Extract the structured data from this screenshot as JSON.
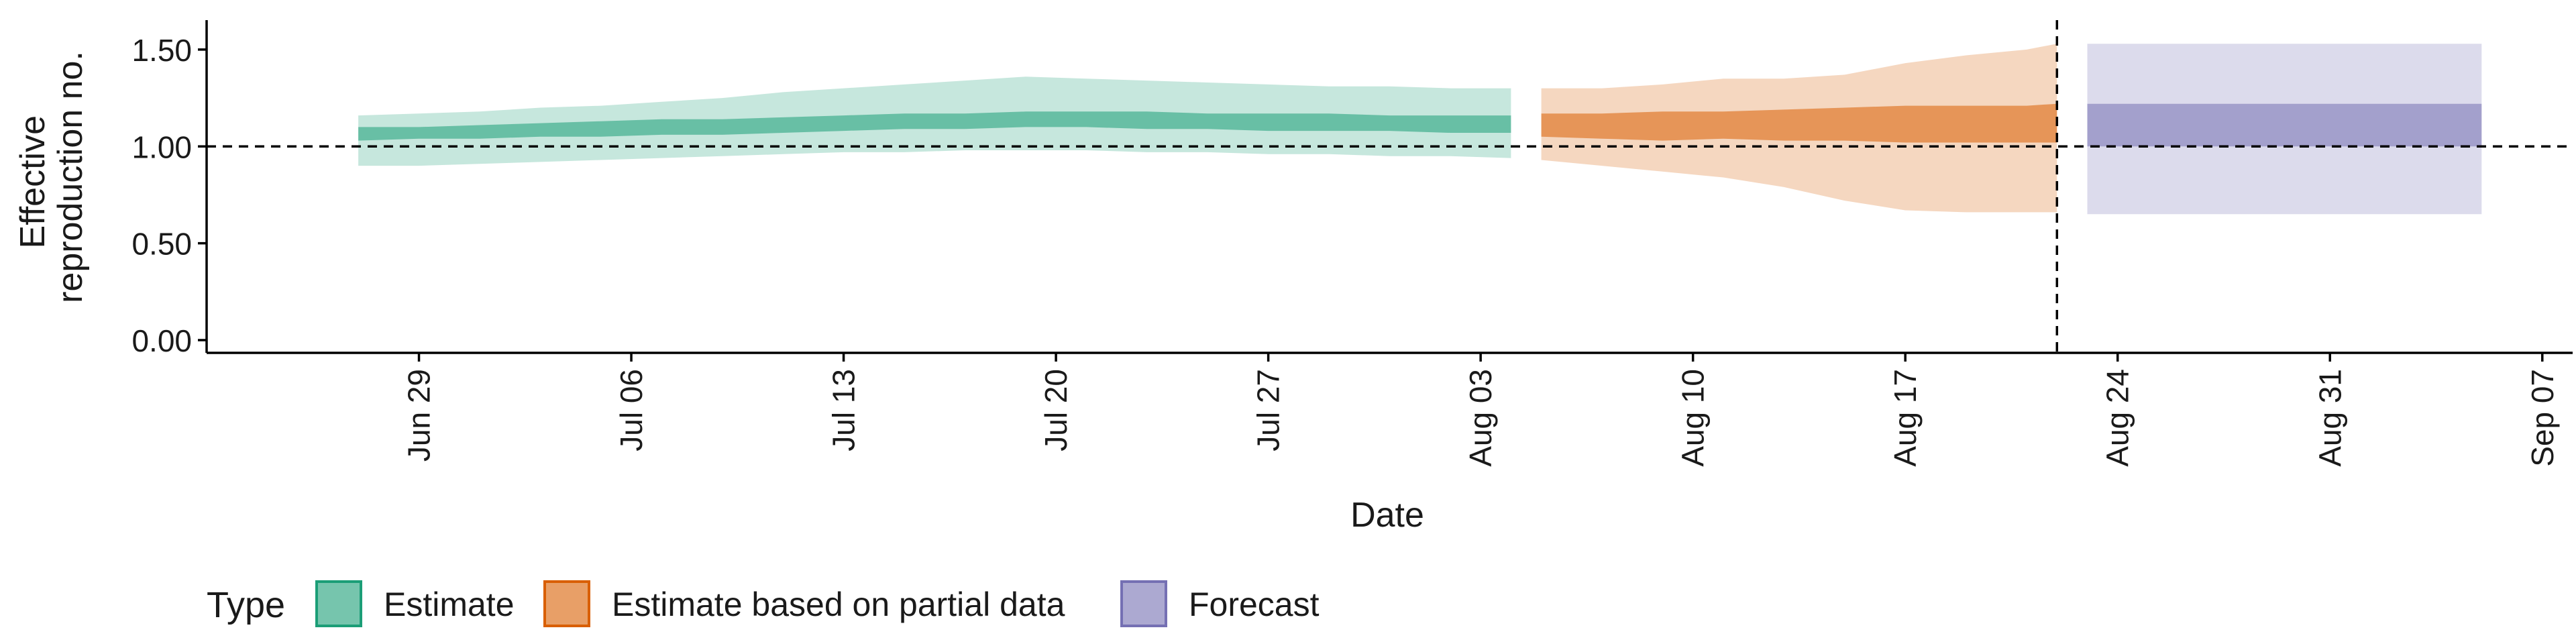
{
  "chart_data": {
    "type": "area",
    "xlabel": "Date",
    "ylabel_lines": [
      "Effective",
      "reproduction no."
    ],
    "ylim": [
      0,
      1.6
    ],
    "y_ticks": [
      0.0,
      0.5,
      1.0,
      1.5
    ],
    "y_tick_labels": [
      "0.00",
      "0.50",
      "1.00",
      "1.50"
    ],
    "x_ticks": [
      "2020-06-29",
      "2020-07-06",
      "2020-07-13",
      "2020-07-20",
      "2020-07-27",
      "2020-08-03",
      "2020-08-10",
      "2020-08-17",
      "2020-08-24",
      "2020-08-31",
      "2020-09-07"
    ],
    "x_tick_labels": [
      "Jun 29",
      "Jul 06",
      "Jul 13",
      "Jul 20",
      "Jul 27",
      "Aug 03",
      "Aug 10",
      "Aug 17",
      "Aug 24",
      "Aug 31",
      "Sep 07"
    ],
    "x_range": [
      "2020-06-22",
      "2020-09-08"
    ],
    "reference_line_y": 1.0,
    "vertical_line_x": "2020-08-22",
    "grid": false,
    "legend": {
      "title": "Type",
      "position": "bottom-left",
      "items": [
        {
          "label": "Estimate",
          "color": "#1B9E77"
        },
        {
          "label": "Estimate based on partial data",
          "color": "#D95F02"
        },
        {
          "label": "Forecast",
          "color": "#7570B3"
        }
      ]
    },
    "series": [
      {
        "name": "Estimate",
        "color": "#1B9E77",
        "x": [
          "2020-06-27",
          "2020-06-29",
          "2020-07-01",
          "2020-07-03",
          "2020-07-05",
          "2020-07-07",
          "2020-07-09",
          "2020-07-11",
          "2020-07-13",
          "2020-07-15",
          "2020-07-17",
          "2020-07-19",
          "2020-07-21",
          "2020-07-23",
          "2020-07-25",
          "2020-07-27",
          "2020-07-29",
          "2020-07-31",
          "2020-08-02",
          "2020-08-04"
        ],
        "lower90": [
          0.9,
          0.9,
          0.91,
          0.92,
          0.93,
          0.94,
          0.95,
          0.96,
          0.97,
          0.97,
          0.98,
          0.98,
          0.98,
          0.97,
          0.97,
          0.96,
          0.96,
          0.95,
          0.95,
          0.94
        ],
        "upper90": [
          1.16,
          1.17,
          1.18,
          1.2,
          1.21,
          1.23,
          1.25,
          1.28,
          1.3,
          1.32,
          1.34,
          1.36,
          1.35,
          1.34,
          1.33,
          1.32,
          1.31,
          1.31,
          1.3,
          1.3
        ],
        "lower50": [
          1.03,
          1.04,
          1.04,
          1.05,
          1.05,
          1.06,
          1.06,
          1.07,
          1.08,
          1.09,
          1.09,
          1.1,
          1.1,
          1.09,
          1.09,
          1.08,
          1.08,
          1.08,
          1.07,
          1.07
        ],
        "upper50": [
          1.1,
          1.1,
          1.11,
          1.12,
          1.13,
          1.14,
          1.14,
          1.15,
          1.16,
          1.17,
          1.17,
          1.18,
          1.18,
          1.18,
          1.17,
          1.17,
          1.17,
          1.16,
          1.16,
          1.16
        ]
      },
      {
        "name": "Estimate based on partial data",
        "color": "#D95F02",
        "x": [
          "2020-08-05",
          "2020-08-07",
          "2020-08-09",
          "2020-08-11",
          "2020-08-13",
          "2020-08-15",
          "2020-08-17",
          "2020-08-19",
          "2020-08-21",
          "2020-08-22"
        ],
        "lower90": [
          0.93,
          0.9,
          0.87,
          0.84,
          0.79,
          0.72,
          0.67,
          0.66,
          0.66,
          0.66
        ],
        "upper90": [
          1.3,
          1.3,
          1.32,
          1.35,
          1.35,
          1.37,
          1.43,
          1.47,
          1.5,
          1.53
        ],
        "lower50": [
          1.05,
          1.04,
          1.03,
          1.04,
          1.03,
          1.03,
          1.02,
          1.02,
          1.02,
          1.02
        ],
        "upper50": [
          1.17,
          1.17,
          1.18,
          1.18,
          1.19,
          1.2,
          1.21,
          1.21,
          1.21,
          1.22
        ]
      },
      {
        "name": "Forecast",
        "color": "#7570B3",
        "x": [
          "2020-08-23",
          "2020-09-05"
        ],
        "lower90": [
          0.65,
          0.65
        ],
        "upper90": [
          1.53,
          1.53
        ],
        "lower50": [
          1.0,
          1.0
        ],
        "upper50": [
          1.22,
          1.22
        ]
      }
    ]
  }
}
